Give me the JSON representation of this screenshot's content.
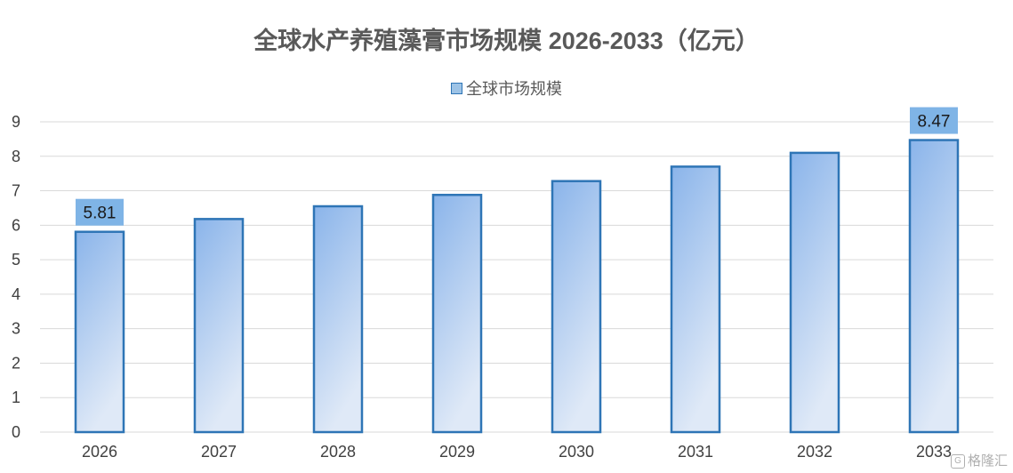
{
  "chart_data": {
    "type": "bar",
    "title": "全球水产养殖藻膏市场规模 2026-2033（亿元）",
    "categories": [
      "2026",
      "2027",
      "2028",
      "2029",
      "2030",
      "2031",
      "2032",
      "2033"
    ],
    "series": [
      {
        "name": "全球市场规模",
        "values": [
          5.81,
          6.18,
          6.55,
          6.88,
          7.28,
          7.7,
          8.1,
          8.47
        ]
      }
    ],
    "data_labels": [
      {
        "index": 0,
        "text": "5.81"
      },
      {
        "index": 7,
        "text": "8.47"
      }
    ],
    "ylim": [
      0,
      9
    ],
    "yticks": [
      0,
      1,
      2,
      3,
      4,
      5,
      6,
      7,
      8,
      9
    ],
    "xlabel": "",
    "ylabel": "",
    "grid": true,
    "legend_position": "top",
    "colors": {
      "bar_top": "#8ab4ea",
      "bar_bottom": "#dfe9f7",
      "bar_edge": "#2e75b6",
      "label_bg": "#7fb4e6",
      "grid": "#d9d9d9",
      "axis_text": "#404040"
    }
  },
  "watermark": {
    "icon": "gelonghui-logo-icon",
    "text": "格隆汇"
  }
}
